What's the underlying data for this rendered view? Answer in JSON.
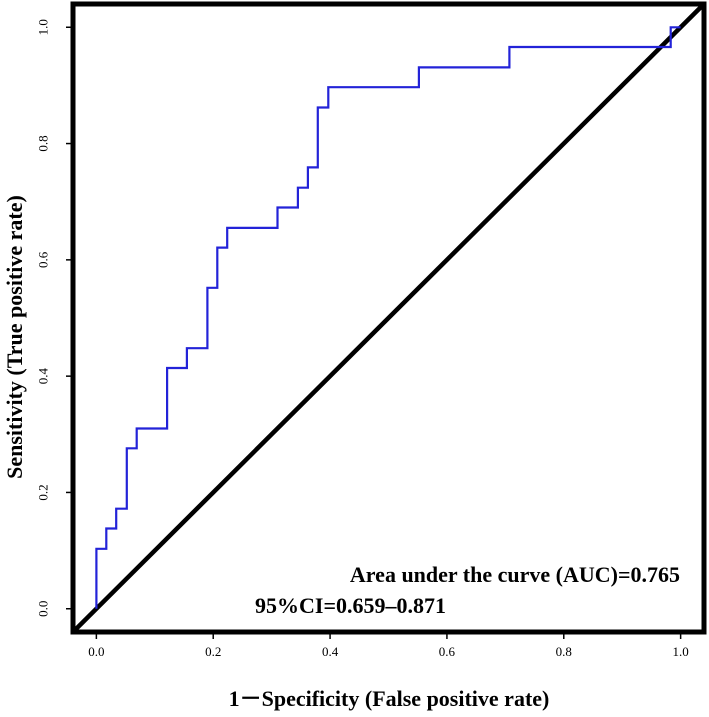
{
  "chart_data": {
    "type": "line",
    "title": "",
    "xlabel": "1－Specificity (False positive rate)",
    "ylabel": "Sensitivity (True positive rate)",
    "xlim": [
      -0.04,
      1.04
    ],
    "ylim": [
      -0.04,
      1.04
    ],
    "xticks": [
      0.0,
      0.2,
      0.4,
      0.6,
      0.8,
      1.0
    ],
    "xtick_labels": [
      "0.0",
      "0.2",
      "0.4",
      "0.6",
      "0.8",
      "1.0"
    ],
    "yticks": [
      0.0,
      0.2,
      0.4,
      0.6,
      0.8,
      1.0
    ],
    "ytick_labels": [
      "0.0",
      "0.2",
      "0.4",
      "0.6",
      "0.8",
      "1.0"
    ],
    "grid": false,
    "series": [
      {
        "name": "ROC curve",
        "color": "#2323d8",
        "style": "step",
        "x": [
          0.0,
          0.0,
          0.017,
          0.017,
          0.034,
          0.034,
          0.052,
          0.052,
          0.069,
          0.069,
          0.121,
          0.121,
          0.155,
          0.155,
          0.19,
          0.19,
          0.207,
          0.207,
          0.224,
          0.224,
          0.31,
          0.31,
          0.345,
          0.345,
          0.362,
          0.362,
          0.379,
          0.379,
          0.397,
          0.397,
          0.552,
          0.552,
          0.707,
          0.707,
          0.983,
          0.983,
          1.0
        ],
        "y": [
          0.0,
          0.103,
          0.103,
          0.138,
          0.138,
          0.172,
          0.172,
          0.276,
          0.276,
          0.31,
          0.31,
          0.414,
          0.414,
          0.448,
          0.448,
          0.552,
          0.552,
          0.621,
          0.621,
          0.655,
          0.655,
          0.69,
          0.69,
          0.724,
          0.724,
          0.759,
          0.759,
          0.862,
          0.862,
          0.897,
          0.897,
          0.931,
          0.931,
          0.966,
          0.966,
          1.0,
          1.0
        ]
      },
      {
        "name": "Reference line",
        "color": "#000000",
        "style": "line",
        "x": [
          -0.04,
          1.04
        ],
        "y": [
          -0.04,
          1.04
        ]
      }
    ],
    "annotations": [
      "Area under the curve (AUC)=0.765",
      "95%CI=0.659–0.871"
    ]
  }
}
